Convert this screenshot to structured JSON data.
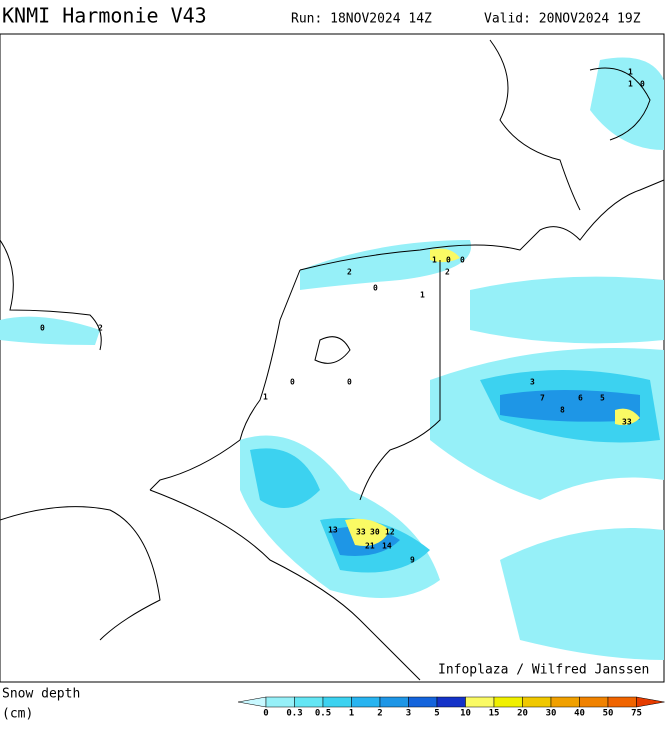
{
  "header": {
    "title": "KNMI Harmonie V43",
    "run": "Run: 18NOV2024 14Z",
    "valid": "Valid: 20NOV2024 19Z"
  },
  "credit": "Infoplaza / Wilfred Janssen",
  "legend": {
    "title_line1": "Snow depth",
    "title_line2": "(cm)",
    "levels": [
      "0",
      "0.3",
      "0.5",
      "1",
      "2",
      "3",
      "5",
      "10",
      "15",
      "20",
      "30",
      "40",
      "50",
      "75"
    ],
    "colors": [
      "#c8f8ff",
      "#96f0f8",
      "#64e6f4",
      "#3cd2f0",
      "#28b4f0",
      "#1e96e6",
      "#1464dc",
      "#1432c8",
      "#fafa64",
      "#f0f000",
      "#f0c800",
      "#f0a000",
      "#f08200",
      "#f06400",
      "#e63c00"
    ]
  },
  "map": {
    "labels": [
      "1",
      "0",
      "2",
      "0",
      "0",
      "1",
      "1",
      "0",
      "0",
      "2",
      "3",
      "7",
      "8",
      "6",
      "5",
      "13",
      "33",
      "30",
      "12",
      "21",
      "14",
      "9",
      "0",
      "1",
      "2",
      "33",
      "1",
      "0"
    ]
  }
}
